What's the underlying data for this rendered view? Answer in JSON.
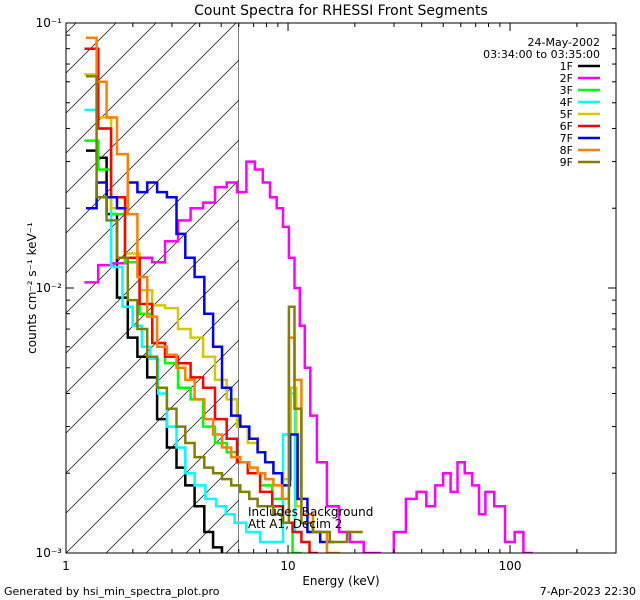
{
  "chart_data": {
    "type": "line",
    "title": "Count Spectra for RHESSI Front Segments",
    "xlabel": "Energy (keV)",
    "ylabel": "counts cm⁻² s⁻¹ keV⁻¹",
    "xscale": "log",
    "yscale": "log",
    "xlim": [
      1,
      300
    ],
    "ylim": [
      0.001,
      0.1
    ],
    "x_tick_labels": [
      "1",
      "10",
      "100"
    ],
    "x_ticks": [
      1,
      10,
      100
    ],
    "y_tick_labels": [
      "10⁻³",
      "10⁻²",
      "10⁻¹"
    ],
    "y_ticks": [
      0.001,
      0.01,
      0.1
    ],
    "date": "24-May-2002",
    "time_range": "03:34:00 to 03:35:00",
    "hatched_region_keV": [
      1,
      6
    ],
    "annotation_lines": [
      "Includes Background",
      "Att A1, Decim 2"
    ],
    "legend_position": "top-right",
    "series": [
      {
        "name": "1F",
        "color": "#000000",
        "x": [
          1.3,
          1.45,
          1.6,
          1.8,
          2.0,
          2.2,
          2.45,
          2.7,
          3.0,
          3.3,
          3.6,
          4.0,
          4.4,
          4.8,
          5.3,
          5.8
        ],
        "y": [
          0.033,
          0.031,
          0.019,
          0.0092,
          0.0065,
          0.0055,
          0.0046,
          0.0032,
          0.0025,
          0.0021,
          0.0018,
          0.0015,
          0.0012,
          0.00105,
          0.0009,
          0.0008
        ]
      },
      {
        "name": "2F",
        "color": "#ff00ff",
        "x": [
          1.3,
          1.5,
          1.7,
          2.0,
          2.3,
          2.6,
          3.0,
          3.4,
          3.9,
          4.4,
          5.0,
          5.6,
          6.2,
          6.8,
          7.4,
          8.0,
          8.6,
          9.2,
          9.8,
          10.4,
          11.0,
          11.6,
          12.2,
          13.0,
          14.0,
          16,
          18,
          20,
          24,
          28,
          32,
          36,
          40,
          44,
          48,
          52,
          56,
          60,
          65,
          70,
          75,
          80,
          90,
          100,
          110,
          120,
          130
        ],
        "y": [
          0.0105,
          0.0122,
          0.0124,
          0.0125,
          0.013,
          0.0125,
          0.015,
          0.018,
          0.02,
          0.021,
          0.024,
          0.025,
          0.023,
          0.03,
          0.028,
          0.025,
          0.022,
          0.02,
          0.017,
          0.013,
          0.01,
          0.0072,
          0.005,
          0.0033,
          0.0022,
          0.0015,
          0.0012,
          0.0011,
          0.001,
          0.0009,
          0.0012,
          0.0016,
          0.0017,
          0.0015,
          0.0018,
          0.002,
          0.0017,
          0.0022,
          0.002,
          0.0018,
          0.0014,
          0.0017,
          0.0015,
          0.0011,
          0.0012,
          0.001,
          0.0009
        ]
      },
      {
        "name": "3F",
        "color": "#00ff00",
        "x": [
          1.3,
          1.5,
          1.7,
          2.0,
          2.3,
          2.6,
          3.0,
          3.4,
          3.9,
          4.4,
          5.0,
          5.6,
          6.2,
          7.0,
          8.0,
          9.0,
          10.0,
          11.0
        ],
        "y": [
          0.036,
          0.028,
          0.019,
          0.0125,
          0.008,
          0.0062,
          0.0052,
          0.0042,
          0.0038,
          0.003,
          0.0026,
          0.0024,
          0.0022,
          0.002,
          0.0018,
          0.0016,
          0.0013,
          0.001
        ]
      },
      {
        "name": "4F",
        "color": "#00ffff",
        "x": [
          1.3,
          1.5,
          1.7,
          1.9,
          2.1,
          2.3,
          2.5,
          2.7,
          3.0,
          3.3,
          3.6,
          4.0,
          4.5,
          5.0,
          5.5,
          6.0,
          7.0,
          8.0,
          9.0,
          10.0,
          10.5,
          11.0
        ],
        "y": [
          0.047,
          0.04,
          0.012,
          0.0085,
          0.0072,
          0.006,
          0.0054,
          0.004,
          0.003,
          0.0025,
          0.002,
          0.0018,
          0.0016,
          0.0015,
          0.0014,
          0.0013,
          0.0012,
          0.0011,
          0.0011,
          0.0028,
          0.004,
          0.0012
        ]
      },
      {
        "name": "5F",
        "color": "#d4c800",
        "x": [
          1.3,
          1.5,
          1.7,
          2.0,
          2.3,
          2.6,
          3.0,
          3.4,
          3.9,
          4.4,
          5.0,
          5.6,
          6.2,
          7.0,
          7.6,
          8.2,
          9.0,
          10.0,
          10.6,
          11.2
        ],
        "y": [
          0.064,
          0.044,
          0.02,
          0.0135,
          0.0098,
          0.0086,
          0.0084,
          0.007,
          0.0065,
          0.0055,
          0.0045,
          0.0038,
          0.003,
          0.0026,
          0.0024,
          0.0022,
          0.002,
          0.0019,
          0.0042,
          0.0015
        ]
      },
      {
        "name": "6F",
        "color": "#ff0000",
        "x": [
          1.3,
          1.5,
          1.7,
          2.0,
          2.3,
          2.6,
          3.0,
          3.4,
          3.9,
          4.4,
          5.0,
          5.6,
          6.2,
          7.0,
          8.0,
          9.0,
          10.0,
          11.0,
          12.0,
          13.0,
          14.0
        ],
        "y": [
          0.08,
          0.04,
          0.022,
          0.013,
          0.0087,
          0.0062,
          0.0055,
          0.0052,
          0.0046,
          0.0042,
          0.0032,
          0.0027,
          0.0022,
          0.002,
          0.0017,
          0.0015,
          0.0013,
          0.0012,
          0.0011,
          0.001,
          0.0009
        ]
      },
      {
        "name": "7F",
        "color": "#0000ff",
        "x": [
          1.3,
          1.45,
          1.6,
          1.8,
          2.0,
          2.2,
          2.45,
          2.7,
          3.0,
          3.3,
          3.6,
          4.0,
          4.4,
          4.8,
          5.3,
          5.8,
          6.4,
          7.0,
          7.6,
          8.2,
          9.0,
          9.8,
          10.6,
          11.5,
          13,
          15
        ],
        "y": [
          0.02,
          0.025,
          0.022,
          0.02,
          0.025,
          0.023,
          0.025,
          0.023,
          0.022,
          0.016,
          0.013,
          0.011,
          0.008,
          0.006,
          0.0042,
          0.0033,
          0.003,
          0.0027,
          0.0024,
          0.0022,
          0.002,
          0.0018,
          0.0028,
          0.0016,
          0.0012,
          0.0011
        ]
      },
      {
        "name": "8F",
        "color": "#ff8000",
        "x": [
          1.3,
          1.45,
          1.6,
          1.8,
          2.0,
          2.2,
          2.45,
          2.7,
          3.0,
          3.3,
          3.6,
          4.0,
          4.4,
          4.8,
          5.3,
          5.8,
          6.4,
          7.0,
          7.6,
          8.2,
          9.0,
          9.8,
          10.4,
          11.0,
          12.0,
          14.0,
          16.0
        ],
        "y": [
          0.088,
          0.06,
          0.044,
          0.032,
          0.019,
          0.011,
          0.0078,
          0.006,
          0.0056,
          0.005,
          0.0045,
          0.0038,
          0.0032,
          0.0028,
          0.0025,
          0.0023,
          0.0022,
          0.0021,
          0.002,
          0.0019,
          0.0018,
          0.0016,
          0.0065,
          0.0045,
          0.0014,
          0.0012,
          0.001
        ]
      },
      {
        "name": "9F",
        "color": "#808000",
        "x": [
          1.3,
          1.45,
          1.6,
          1.8,
          2.0,
          2.2,
          2.45,
          2.7,
          3.0,
          3.3,
          3.6,
          4.0,
          4.4,
          4.8,
          5.3,
          5.8,
          6.4,
          7.0,
          7.6,
          8.2,
          9.0,
          9.8,
          10.4,
          11.0,
          12.0,
          14.0,
          17.0,
          20.0
        ],
        "y": [
          0.063,
          0.022,
          0.018,
          0.013,
          0.009,
          0.007,
          0.0055,
          0.0042,
          0.0035,
          0.003,
          0.0026,
          0.0023,
          0.0021,
          0.002,
          0.0019,
          0.0018,
          0.0017,
          0.0016,
          0.0015,
          0.0015,
          0.0014,
          0.0013,
          0.0085,
          0.0035,
          0.0013,
          0.0012,
          0.0011,
          0.0012
        ]
      }
    ]
  },
  "footer": {
    "left": "Generated by hsi_min_spectra_plot.pro",
    "right": "7-Apr-2023 22:30"
  }
}
